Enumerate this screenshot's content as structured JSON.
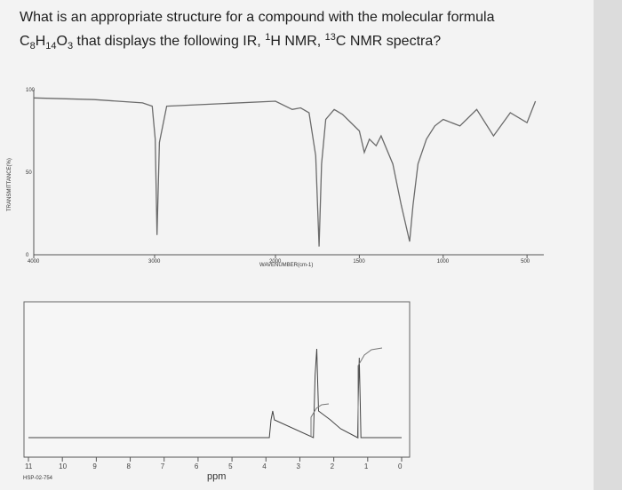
{
  "question": {
    "line1": "What is an appropriate structure for a compound with the molecular formula",
    "formula": {
      "c": "C",
      "c_n": "8",
      "h": "H",
      "h_n": "14",
      "o": "O",
      "o_n": "3"
    },
    "line2_rest": " that displays the following IR, ",
    "h_sup": "1",
    "h_nmr": "H NMR, ",
    "c_sup": "13",
    "c_nmr": "C NMR spectra?"
  },
  "ir_spectrum": {
    "y_axis_label": "TRANSMITTANCE(%)",
    "y_ticks": [
      "100",
      "50",
      "0"
    ],
    "x_ticks": [
      "4000",
      "3000",
      "2000",
      "1500",
      "1000",
      "500"
    ],
    "x_axis_label": "WAVENUMBER(cm-1)"
  },
  "h_nmr_spectrum": {
    "x_ticks": [
      "11",
      "10",
      "9",
      "8",
      "7",
      "6",
      "5",
      "4",
      "3",
      "2",
      "1",
      "0"
    ],
    "x_axis_label": "ppm",
    "source_label": "HSP-02-754"
  },
  "chart_data": [
    {
      "type": "line",
      "xlabel": "WAVENUMBER(cm-1)",
      "ylabel": "TRANSMITTANCE(%)",
      "xlim": [
        4000,
        400
      ],
      "ylim": [
        0,
        100
      ],
      "x": [
        4000,
        3500,
        3100,
        3020,
        2995,
        2980,
        2960,
        2900,
        2000,
        1900,
        1850,
        1800,
        1760,
        1740,
        1725,
        1700,
        1650,
        1600,
        1500,
        1470,
        1440,
        1400,
        1370,
        1300,
        1250,
        1200,
        1180,
        1150,
        1100,
        1050,
        1000,
        900,
        800,
        700,
        600,
        500,
        450
      ],
      "y": [
        95,
        94,
        92,
        90,
        70,
        12,
        68,
        90,
        93,
        88,
        89,
        86,
        60,
        5,
        55,
        82,
        88,
        85,
        75,
        62,
        70,
        66,
        72,
        55,
        30,
        8,
        30,
        55,
        70,
        78,
        82,
        78,
        88,
        72,
        86,
        80,
        93
      ]
    },
    {
      "type": "line",
      "xlabel": "ppm",
      "xlim": [
        11,
        0
      ],
      "x": [
        11,
        3.9,
        3.85,
        3.8,
        3.75,
        2.6,
        2.58,
        2.55,
        2.5,
        2.48,
        2.45,
        2.1,
        1.8,
        1.3,
        1.28,
        1.25,
        1.22,
        1.2,
        0
      ],
      "y": [
        0,
        0,
        2,
        3,
        2,
        0,
        3,
        7,
        10,
        7,
        3,
        2,
        1,
        0,
        4,
        9,
        4,
        0,
        0
      ]
    }
  ]
}
